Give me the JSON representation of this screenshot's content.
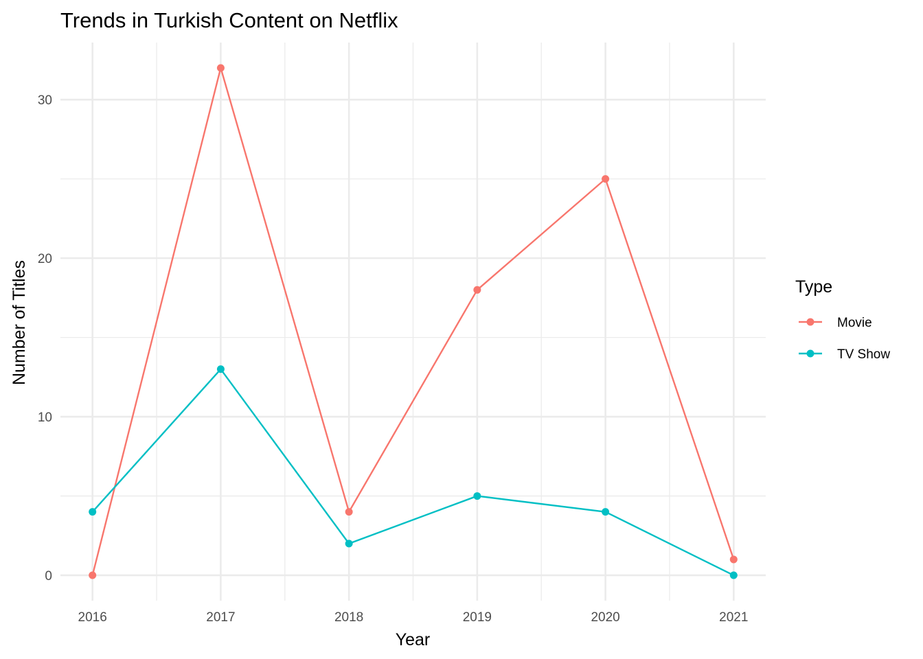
{
  "chart_data": {
    "type": "line",
    "title": "Trends in Turkish Content on Netflix",
    "xlabel": "Year",
    "ylabel": "Number of Titles",
    "x": [
      2016,
      2017,
      2018,
      2019,
      2020,
      2021
    ],
    "xlim": [
      2015.75,
      2021.25
    ],
    "ylim": [
      -1.6,
      33.6
    ],
    "x_ticks": [
      2016,
      2017,
      2018,
      2019,
      2020,
      2021
    ],
    "y_ticks": [
      0,
      10,
      20,
      30
    ],
    "grid": true,
    "legend": {
      "title": "Type",
      "position": "right"
    },
    "series": [
      {
        "name": "Movie",
        "color": "#F8766D",
        "values": [
          0,
          32,
          4,
          18,
          25,
          1
        ]
      },
      {
        "name": "TV Show",
        "color": "#00BFC4",
        "values": [
          4,
          13,
          2,
          5,
          4,
          0
        ]
      }
    ]
  }
}
